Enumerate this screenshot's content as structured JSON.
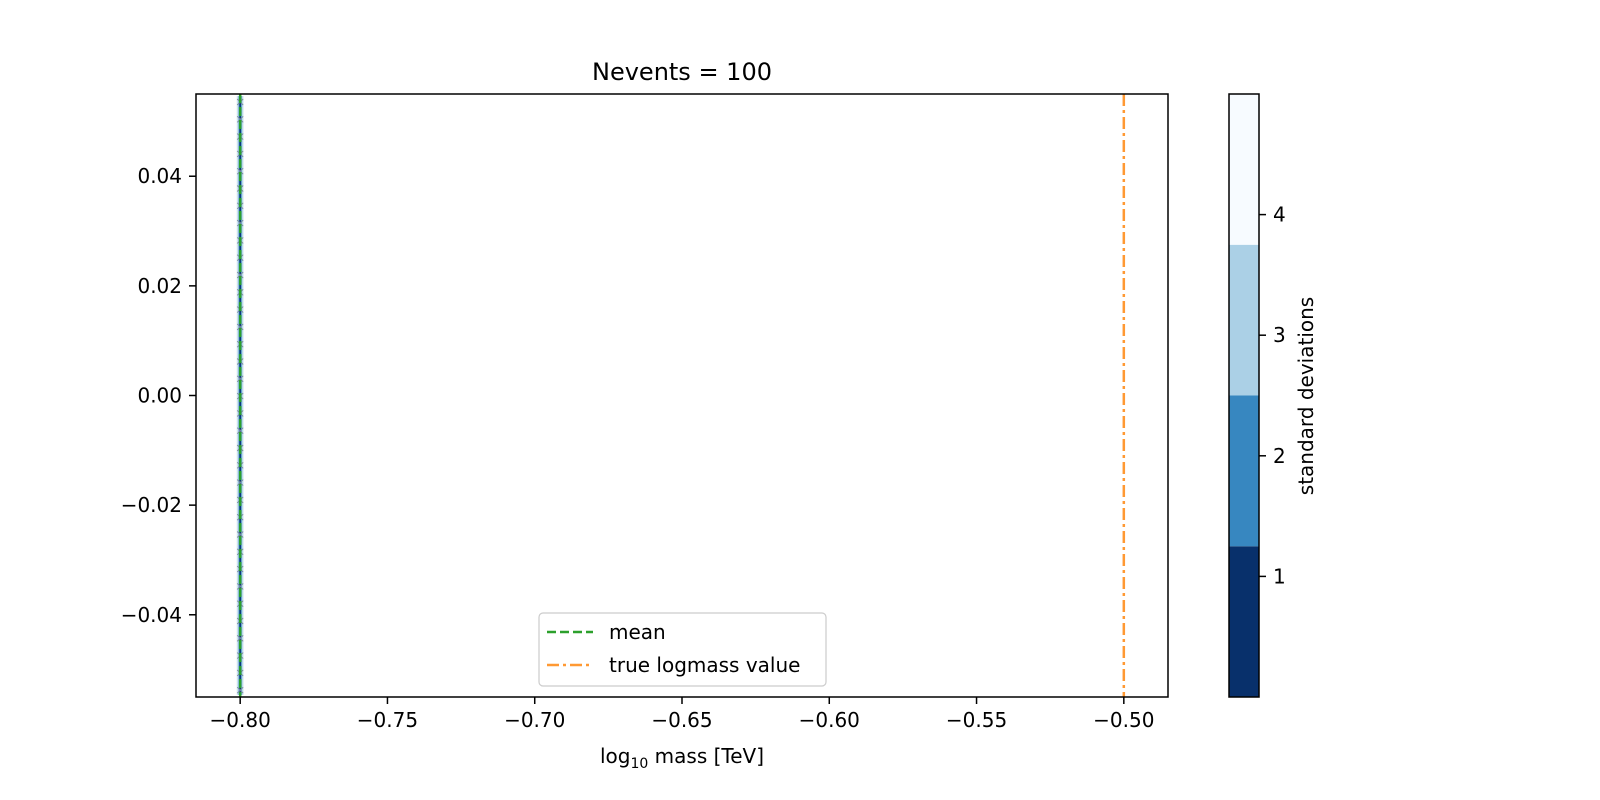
{
  "chart_data": {
    "type": "line",
    "title": "Nevents = 100",
    "xlabel_main": "log",
    "xlabel_sub": "10",
    "xlabel_rest": " mass [TeV]",
    "ylabel": "",
    "xlim": [
      -0.815,
      -0.485
    ],
    "ylim": [
      -0.055,
      0.055
    ],
    "x_ticks": [
      -0.8,
      -0.75,
      -0.7,
      -0.65,
      -0.6,
      -0.55,
      -0.5
    ],
    "x_tick_labels": [
      "−0.80",
      "−0.75",
      "−0.70",
      "−0.65",
      "−0.60",
      "−0.55",
      "−0.50"
    ],
    "y_ticks": [
      -0.04,
      -0.02,
      0.0,
      0.02,
      0.04
    ],
    "y_tick_labels": [
      "−0.04",
      "−0.02",
      "0.00",
      "0.02",
      "0.04"
    ],
    "series": [
      {
        "name": "mean",
        "x": [
          -0.8,
          -0.8
        ],
        "y": [
          -0.055,
          0.055
        ],
        "color": "#2ca02c",
        "dash": "dashed"
      },
      {
        "name": "true logmass value",
        "x": [
          -0.5,
          -0.5
        ],
        "y": [
          -0.055,
          0.055
        ],
        "color": "#ff9933",
        "dash": "dashdot"
      }
    ],
    "contour_band_x": -0.8,
    "legend_location": "lower center",
    "colorbar": {
      "label": "standard deviations",
      "levels": [
        0,
        1.25,
        2.5,
        3.75,
        5.0
      ],
      "tick_values": [
        1,
        2,
        3,
        4
      ],
      "tick_labels": [
        "1",
        "2",
        "3",
        "4"
      ],
      "colors": [
        "#08306b",
        "#3787c0",
        "#abd0e6",
        "#f7fbff"
      ]
    },
    "grid": false
  }
}
